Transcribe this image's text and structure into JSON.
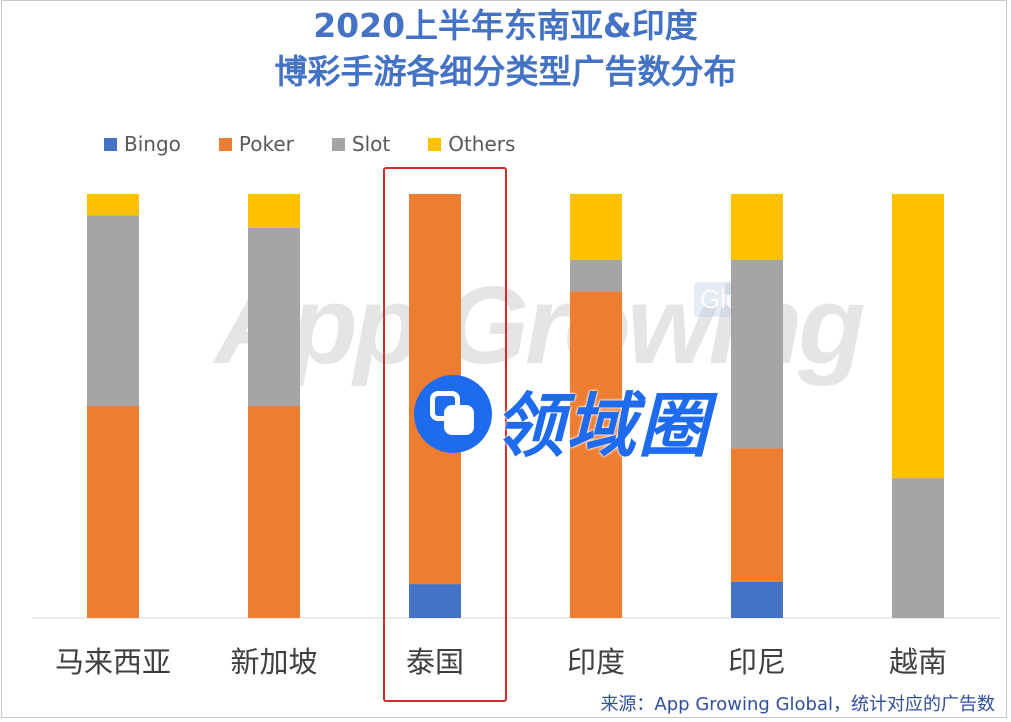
{
  "colors": {
    "title": "#4472c4",
    "bingo": "#4472c4",
    "poker": "#ed7d31",
    "slot": "#a5a5a5",
    "others": "#ffc000",
    "highlight": "#d62b2b",
    "brand": "#1e6bf0"
  },
  "watermark": {
    "main": "App Growing",
    "tag": "Global",
    "brand": "领域圈"
  },
  "source_note": "来源：App Growing Global，统计对应的广告数",
  "chart_data": {
    "type": "bar",
    "stacked": true,
    "normalized": true,
    "title": "2020上半年东南亚&印度",
    "subtitle": "博彩手游各细分类型广告数分布",
    "legend_position": "top-left",
    "grid": false,
    "highlighted_category": "泰国",
    "categories": [
      "马来西亚",
      "新加坡",
      "泰国",
      "印度",
      "印尼",
      "越南"
    ],
    "ylim": [
      0,
      100
    ],
    "series": [
      {
        "name": "Bingo",
        "color": "#4472c4",
        "values": [
          0,
          0,
          8,
          0,
          8.5,
          0
        ]
      },
      {
        "name": "Poker",
        "color": "#ed7d31",
        "values": [
          50,
          50,
          92,
          77,
          31.5,
          0
        ]
      },
      {
        "name": "Slot",
        "color": "#a5a5a5",
        "values": [
          45,
          42,
          0,
          7.5,
          44.5,
          33
        ]
      },
      {
        "name": "Others",
        "color": "#ffc000",
        "values": [
          5,
          8,
          0,
          15.5,
          15.5,
          67
        ]
      }
    ]
  }
}
